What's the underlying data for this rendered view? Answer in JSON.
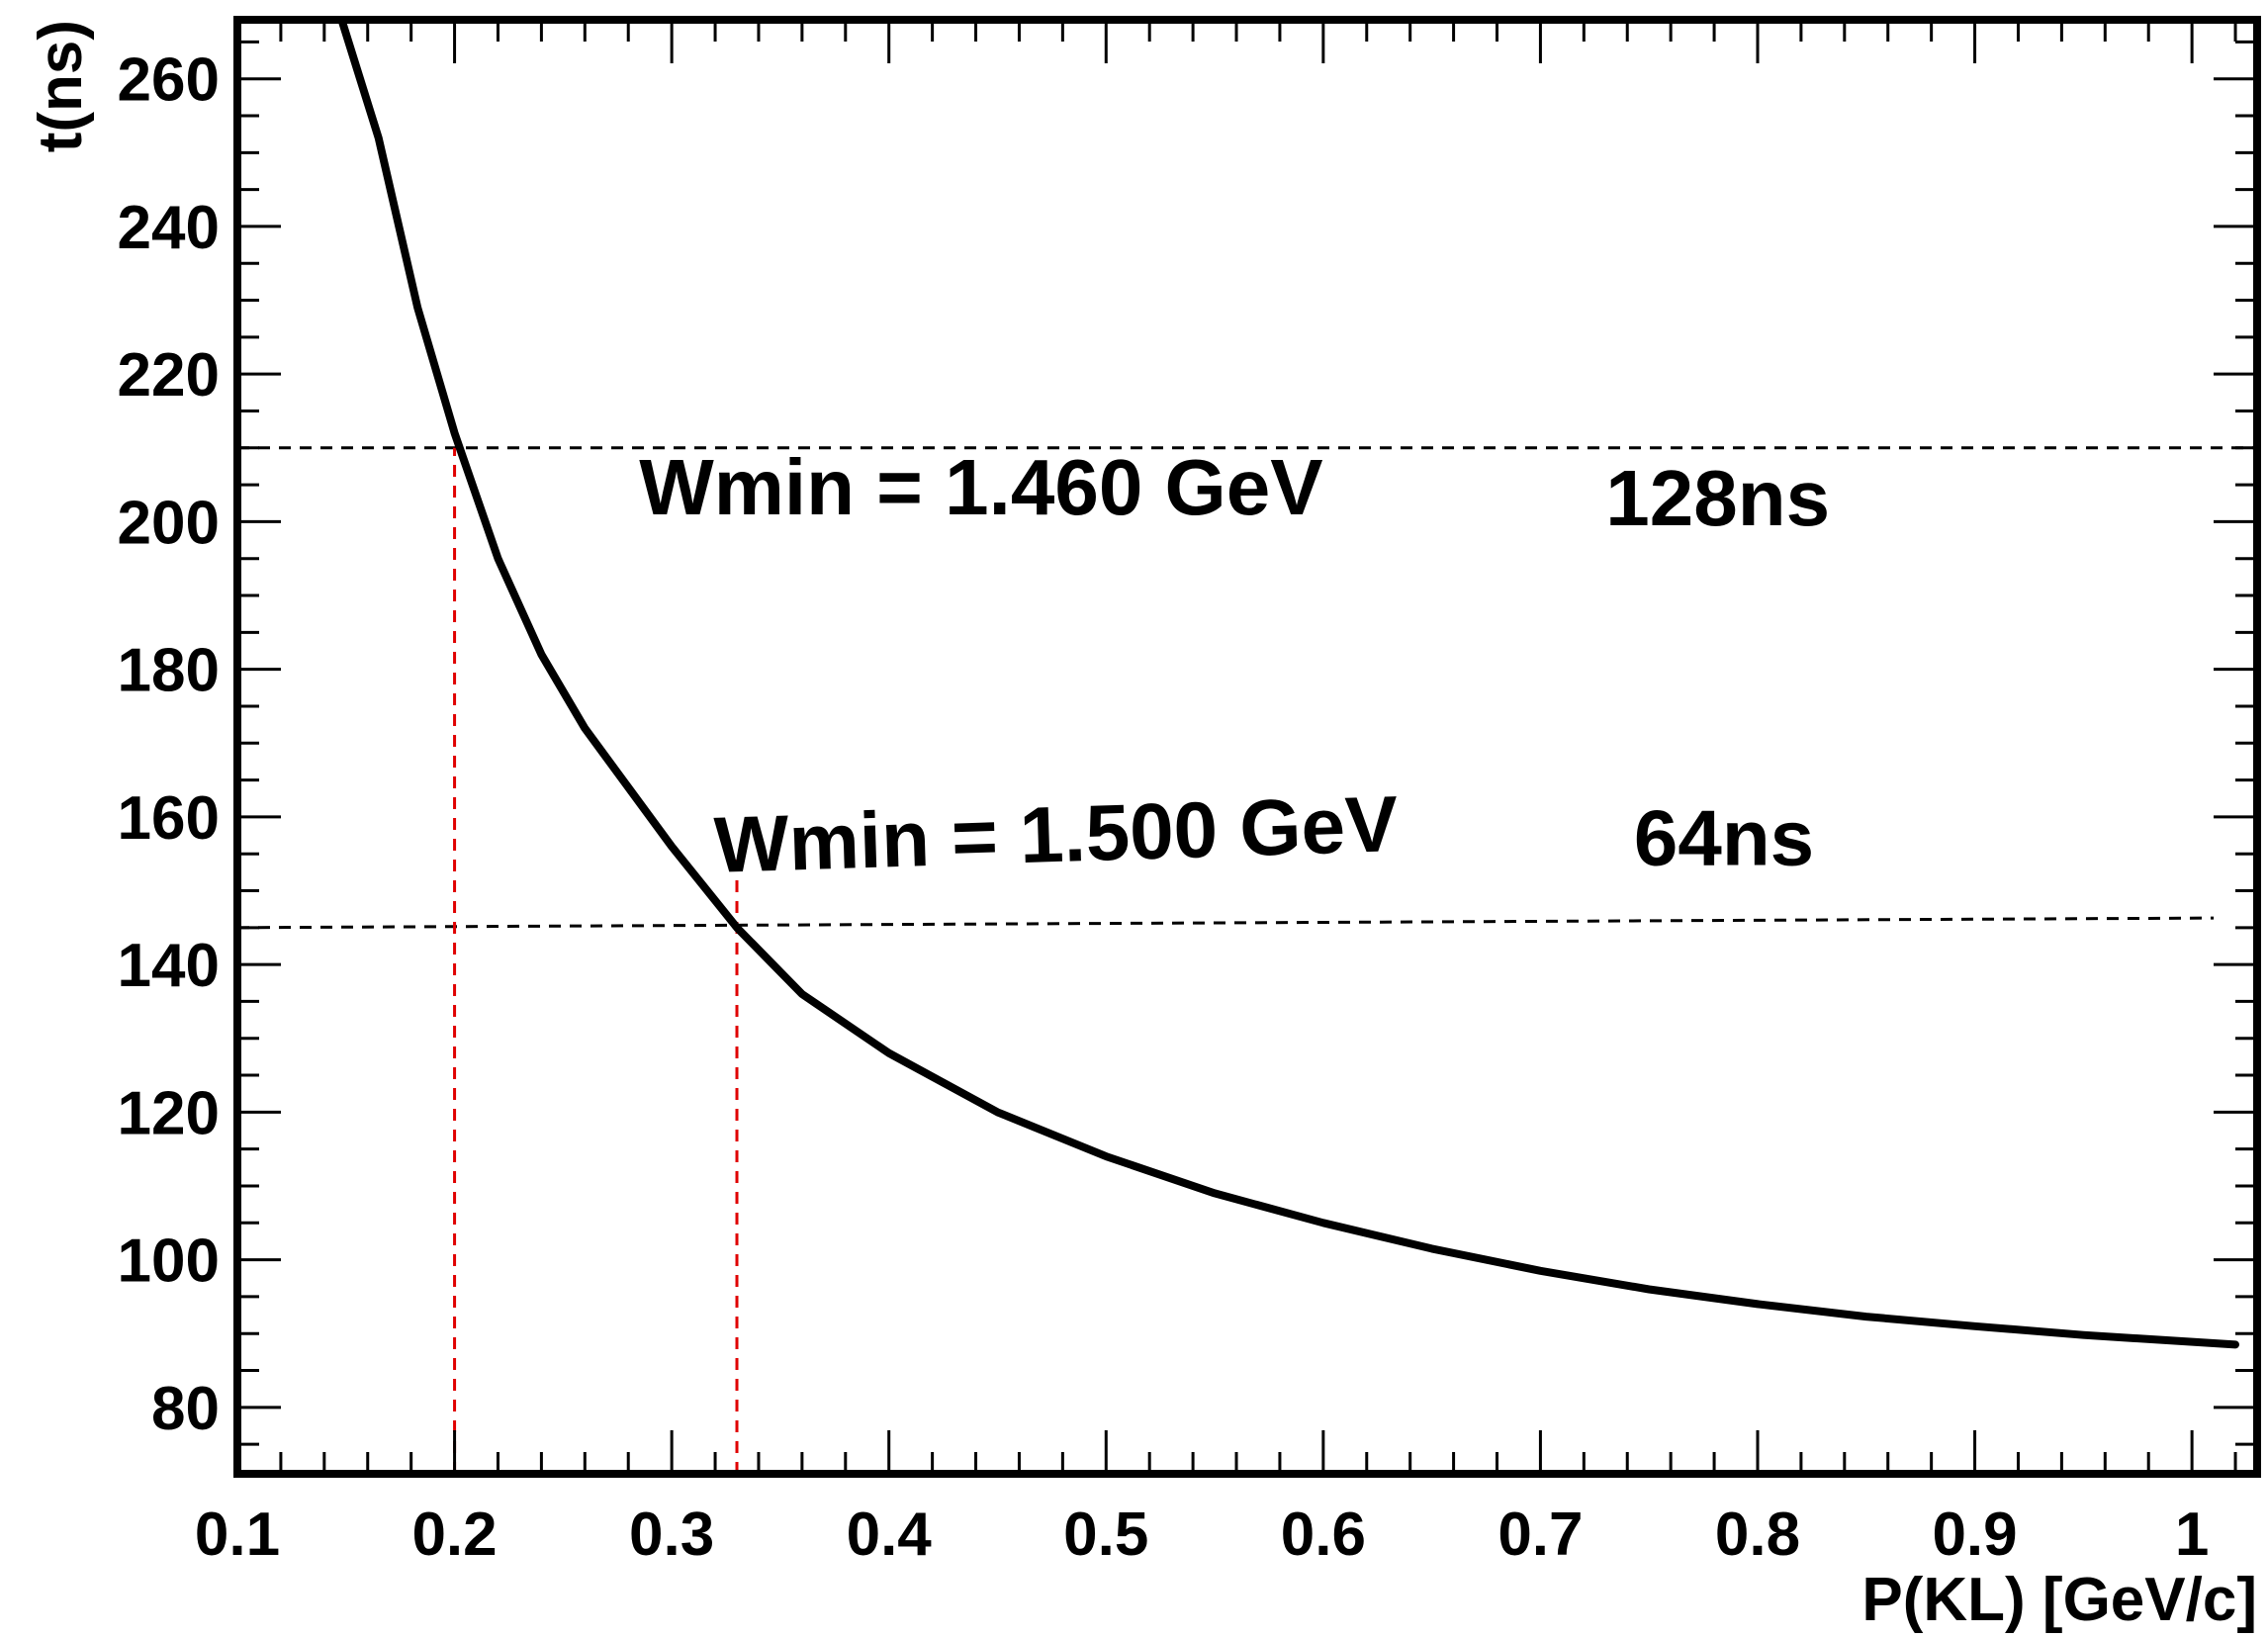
{
  "chart_data": {
    "type": "line",
    "title": "",
    "xlabel": "P(KL) [GeV/c]",
    "ylabel": "t(ns)",
    "xlim": [
      0.1,
      1.03
    ],
    "ylim": [
      71,
      268
    ],
    "grid": false,
    "x_ticks": [
      "0.1",
      "0.2",
      "0.3",
      "0.4",
      "0.5",
      "0.6",
      "0.7",
      "0.8",
      "0.9",
      "1"
    ],
    "y_ticks": [
      "80",
      "100",
      "120",
      "140",
      "160",
      "180",
      "200",
      "220",
      "240",
      "260"
    ],
    "series": [
      {
        "color": "#000000",
        "x": [
          0.148,
          0.165,
          0.183,
          0.2,
          0.22,
          0.24,
          0.26,
          0.28,
          0.3,
          0.33,
          0.36,
          0.4,
          0.45,
          0.5,
          0.55,
          0.6,
          0.65,
          0.7,
          0.75,
          0.8,
          0.85,
          0.9,
          0.95,
          1.02
        ],
        "y": [
          268,
          252,
          229,
          212,
          195,
          182,
          172,
          164,
          156,
          145,
          136,
          128,
          120,
          114,
          109,
          105,
          101.5,
          98.5,
          96,
          94,
          92.3,
          91,
          89.8,
          88.5
        ]
      }
    ],
    "reference_lines": [
      {
        "kind": "horizontal",
        "y": 210,
        "x_from": 0.1,
        "x_to": 1.03,
        "color": "#000000",
        "style": "dashed"
      },
      {
        "kind": "horizontal",
        "y": 145,
        "x_from": 0.1,
        "x_to": 1.01,
        "y_end": 146.3,
        "color": "#000000",
        "style": "dashed"
      },
      {
        "kind": "vertical",
        "x": 0.2,
        "y_from": 71,
        "y_to": 210,
        "color": "#e00000",
        "style": "dashed"
      },
      {
        "kind": "vertical",
        "x": 0.33,
        "y_from": 71,
        "y_to": 155,
        "color": "#e00000",
        "style": "dashed"
      }
    ],
    "annotations": [
      {
        "text": "Wmin = 1.460 GeV",
        "x": 0.285,
        "y": 201,
        "rotation": 0
      },
      {
        "text": "128ns",
        "x": 0.73,
        "y": 199.5,
        "rotation": 0
      },
      {
        "text": "Wmin = 1.500 GeV",
        "x": 0.32,
        "y": 152.5,
        "rotation": -1.8
      },
      {
        "text": "64ns",
        "x": 0.743,
        "y": 153.5,
        "rotation": 0
      }
    ]
  }
}
